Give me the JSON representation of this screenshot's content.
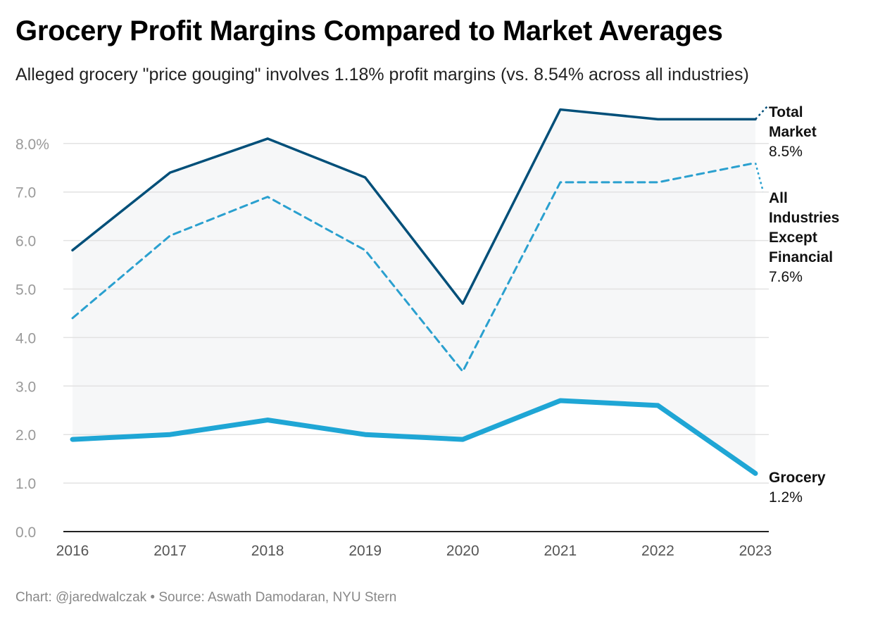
{
  "title": "Grocery Profit Margins Compared to Market Averages",
  "subtitle": "Alleged grocery \"price gouging\" involves 1.18% profit margins (vs. 8.54% across all industries)",
  "footer": "Chart: @jaredwalczak • Source: Aswath Damodaran, NYU Stern",
  "chart_data": {
    "type": "line",
    "x": [
      "2016",
      "2017",
      "2018",
      "2019",
      "2020",
      "2021",
      "2022",
      "2023"
    ],
    "ylim": [
      0,
      8.8
    ],
    "yticks": [
      "0.0",
      "1.0",
      "2.0",
      "3.0",
      "4.0",
      "5.0",
      "6.0",
      "7.0",
      "8.0%"
    ],
    "ytick_values": [
      0,
      1,
      2,
      3,
      4,
      5,
      6,
      7,
      8
    ],
    "grid": true,
    "series": [
      {
        "name": "Total Market",
        "end_label": "8.5%",
        "color": "#004f79",
        "style": "solid",
        "values": [
          5.8,
          7.4,
          8.1,
          7.3,
          4.7,
          8.7,
          8.5,
          8.5
        ]
      },
      {
        "name": "All Industries Except Financial",
        "end_label": "7.6%",
        "color": "#2aa0cf",
        "style": "dashed",
        "values": [
          4.4,
          6.1,
          6.9,
          5.8,
          3.3,
          7.2,
          7.2,
          7.6
        ]
      },
      {
        "name": "Grocery",
        "end_label": "1.2%",
        "color": "#1fa6d5",
        "style": "thick",
        "values": [
          1.9,
          2.0,
          2.3,
          2.0,
          1.9,
          2.7,
          2.6,
          1.2
        ]
      }
    ],
    "shaded_band": "between Total Market and Grocery",
    "label_lines": {
      "Total Market": [
        "Total",
        "Market"
      ],
      "All Industries Except Financial": [
        "All",
        "Industries",
        "Except",
        "Financial"
      ],
      "Grocery": [
        "Grocery"
      ]
    }
  }
}
